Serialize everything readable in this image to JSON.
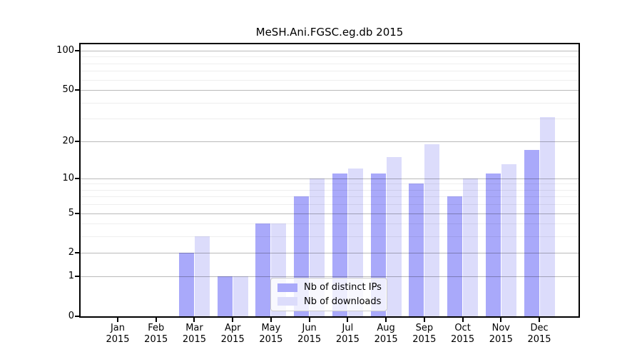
{
  "chart_data": {
    "type": "bar",
    "title": "MeSH.Ani.FGSC.eg.db 2015",
    "categories": [
      "Jan",
      "Feb",
      "Mar",
      "Apr",
      "May",
      "Jun",
      "Jul",
      "Aug",
      "Sep",
      "Oct",
      "Nov",
      "Dec"
    ],
    "year_label": "2015",
    "series": [
      {
        "name": "Nb of distinct IPs",
        "color": "#a9a9fa",
        "values": [
          0,
          0,
          2,
          1,
          4,
          7,
          11,
          11,
          9,
          7,
          11,
          17
        ]
      },
      {
        "name": "Nb of downloads",
        "color": "#dcdcfb",
        "values": [
          0,
          0,
          3,
          1,
          4,
          10,
          12,
          15,
          19,
          10,
          13,
          31
        ]
      }
    ],
    "y_axis": {
      "scale": "log10(1+x)",
      "tick_values": [
        0,
        1,
        2,
        5,
        10,
        20,
        50,
        100
      ],
      "tick_labels": [
        "0",
        "1",
        "2",
        "5",
        "10",
        "20",
        "50",
        "100"
      ],
      "minor_grid_values": [
        3,
        4,
        6,
        7,
        8,
        9,
        30,
        40,
        60,
        70,
        80,
        90
      ],
      "max": 100
    },
    "legend": {
      "position": "inside-bottom-center"
    },
    "style": {
      "major_grid_color": "rgba(0,0,0,0.27)",
      "minor_grid_color": "rgba(0,0,0,0.065)",
      "frame_color": "#000000",
      "background": "#ffffff"
    }
  }
}
